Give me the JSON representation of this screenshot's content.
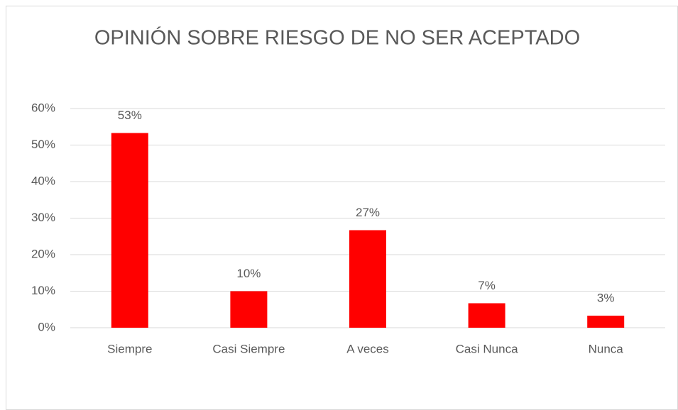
{
  "chart_data": {
    "type": "bar",
    "title": "OPINIÓN SOBRE RIESGO DE NO SER ACEPTADO",
    "categories": [
      "Siempre",
      "Casi Siempre",
      "A veces",
      "Casi Nunca",
      "Nunca"
    ],
    "values": [
      53.3,
      10,
      26.7,
      6.7,
      3.3
    ],
    "value_labels": [
      "53%",
      "10%",
      "27%",
      "7%",
      "3%"
    ],
    "color": "#ff0000",
    "ylim": [
      0,
      60
    ],
    "yticks": [
      {
        "value": 0,
        "label": "0%"
      },
      {
        "value": 10,
        "label": "10%"
      },
      {
        "value": 20,
        "label": "20%"
      },
      {
        "value": 30,
        "label": "30%"
      },
      {
        "value": 40,
        "label": "40%"
      },
      {
        "value": 50,
        "label": "50%"
      },
      {
        "value": 60,
        "label": "60%"
      }
    ],
    "grid": true
  }
}
